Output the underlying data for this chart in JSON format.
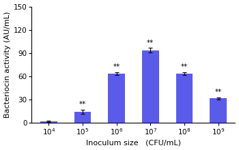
{
  "categories": [
    "10^4",
    "10^5",
    "10^6",
    "10^7",
    "10^8",
    "10^9"
  ],
  "x_positions": [
    1,
    2,
    3,
    4,
    5,
    6
  ],
  "values": [
    1.5,
    14.0,
    63.0,
    93.5,
    63.5,
    31.0
  ],
  "errors": [
    0.8,
    2.5,
    1.8,
    2.8,
    1.8,
    1.5
  ],
  "bar_color": "#5B5BEA",
  "bar_width": 0.5,
  "ylabel": "Bacteriocin activity (AU/mL)",
  "xlabel": "Inoculum size   (CFU/mL)",
  "ylim": [
    0,
    150
  ],
  "yticks": [
    0,
    30,
    60,
    90,
    120,
    150
  ],
  "significance": [
    "",
    "**",
    "**",
    "**",
    "**",
    "**"
  ],
  "sig_fontsize": 7.5,
  "label_fontsize": 8.0,
  "tick_fontsize": 7.5,
  "background_color": "#ffffff"
}
